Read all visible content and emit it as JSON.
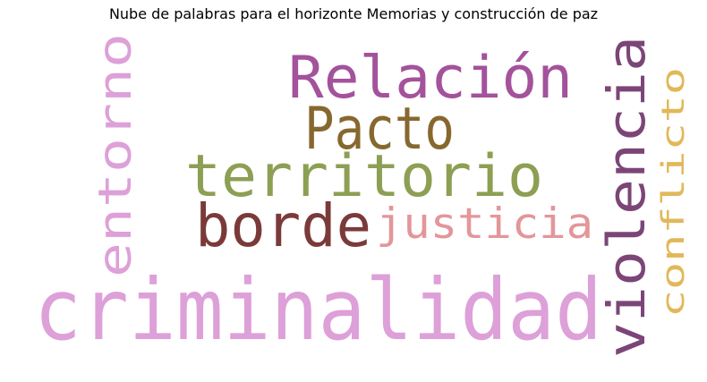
{
  "chart_data": {
    "type": "wordcloud",
    "title": "Nube de palabras para el horizonte Memorias y construcción de paz",
    "words": [
      {
        "text": "criminalidad",
        "color": "#dda0d8",
        "orientation": "horizontal"
      },
      {
        "text": "violencia",
        "color": "#7b4677",
        "orientation": "vertical"
      },
      {
        "text": "entorno",
        "color": "#dda0d8",
        "orientation": "vertical"
      },
      {
        "text": "Relación",
        "color": "#a3529b",
        "orientation": "horizontal"
      },
      {
        "text": "Pacto",
        "color": "#86682f",
        "orientation": "horizontal"
      },
      {
        "text": "territorio",
        "color": "#8c9f53",
        "orientation": "horizontal"
      },
      {
        "text": "borde",
        "color": "#7b3a3a",
        "orientation": "horizontal"
      },
      {
        "text": "justicia",
        "color": "#e3969a",
        "orientation": "horizontal"
      },
      {
        "text": "conflicto",
        "color": "#e1b85a",
        "orientation": "vertical"
      }
    ]
  }
}
